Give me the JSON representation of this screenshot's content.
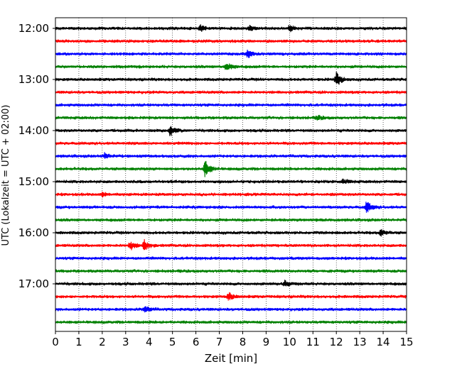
{
  "chart_data": {
    "type": "line",
    "chart_kind": "helicorder seismogram",
    "xlabel": "Zeit  [min]",
    "ylabel": "UTC (Lokalzeit = UTC + 02:00)",
    "xlim": [
      0,
      15
    ],
    "x_ticks": [
      "0",
      "1",
      "2",
      "3",
      "4",
      "5",
      "6",
      "7",
      "8",
      "9",
      "10",
      "11",
      "12",
      "13",
      "14",
      "15"
    ],
    "y_ticks": [
      "12:00",
      "13:00",
      "14:00",
      "15:00",
      "16:00",
      "17:00"
    ],
    "grid": "vertical dotted lines at each minute",
    "start_time": "12:00",
    "line_interval_minutes": 15,
    "color_cycle": [
      "#000000",
      "#ff0000",
      "#0000ff",
      "#008000"
    ],
    "noise_amplitude": 0.12,
    "traces": [
      {
        "start": "12:00",
        "color": "#000000",
        "events": [
          {
            "t": 6.2,
            "amp": 0.35
          },
          {
            "t": 8.3,
            "amp": 0.25
          },
          {
            "t": 10.0,
            "amp": 0.3
          }
        ]
      },
      {
        "start": "12:15",
        "color": "#ff0000",
        "events": []
      },
      {
        "start": "12:30",
        "color": "#0000ff",
        "events": [
          {
            "t": 8.2,
            "amp": 0.45
          }
        ]
      },
      {
        "start": "12:45",
        "color": "#008000",
        "events": [
          {
            "t": 7.3,
            "amp": 0.5
          }
        ]
      },
      {
        "start": "13:00",
        "color": "#000000",
        "events": [
          {
            "t": 12.0,
            "amp": 0.75
          }
        ]
      },
      {
        "start": "13:15",
        "color": "#ff0000",
        "events": []
      },
      {
        "start": "13:30",
        "color": "#0000ff",
        "events": []
      },
      {
        "start": "13:45",
        "color": "#008000",
        "events": [
          {
            "t": 11.2,
            "amp": 0.2
          }
        ]
      },
      {
        "start": "14:00",
        "color": "#000000",
        "events": [
          {
            "t": 4.9,
            "amp": 0.55
          }
        ]
      },
      {
        "start": "14:15",
        "color": "#ff0000",
        "events": []
      },
      {
        "start": "14:30",
        "color": "#0000ff",
        "events": [
          {
            "t": 2.1,
            "amp": 0.3
          }
        ]
      },
      {
        "start": "14:45",
        "color": "#008000",
        "events": [
          {
            "t": 6.4,
            "amp": 0.85
          }
        ]
      },
      {
        "start": "15:00",
        "color": "#000000",
        "events": [
          {
            "t": 12.3,
            "amp": 0.25
          }
        ]
      },
      {
        "start": "15:15",
        "color": "#ff0000",
        "events": [
          {
            "t": 2.0,
            "amp": 0.2
          }
        ]
      },
      {
        "start": "15:30",
        "color": "#0000ff",
        "events": [
          {
            "t": 13.3,
            "amp": 0.6
          }
        ]
      },
      {
        "start": "15:45",
        "color": "#008000",
        "events": []
      },
      {
        "start": "16:00",
        "color": "#000000",
        "events": [
          {
            "t": 13.9,
            "amp": 0.35
          }
        ]
      },
      {
        "start": "16:15",
        "color": "#ff0000",
        "events": [
          {
            "t": 3.2,
            "amp": 0.45
          },
          {
            "t": 3.8,
            "amp": 0.5
          }
        ]
      },
      {
        "start": "16:30",
        "color": "#0000ff",
        "events": []
      },
      {
        "start": "16:45",
        "color": "#008000",
        "events": []
      },
      {
        "start": "17:00",
        "color": "#000000",
        "events": [
          {
            "t": 9.8,
            "amp": 0.3
          }
        ]
      },
      {
        "start": "17:15",
        "color": "#ff0000",
        "events": [
          {
            "t": 7.4,
            "amp": 0.4
          }
        ]
      },
      {
        "start": "17:30",
        "color": "#0000ff",
        "events": [
          {
            "t": 3.8,
            "amp": 0.35
          }
        ]
      },
      {
        "start": "17:45",
        "color": "#008000",
        "events": []
      }
    ]
  }
}
